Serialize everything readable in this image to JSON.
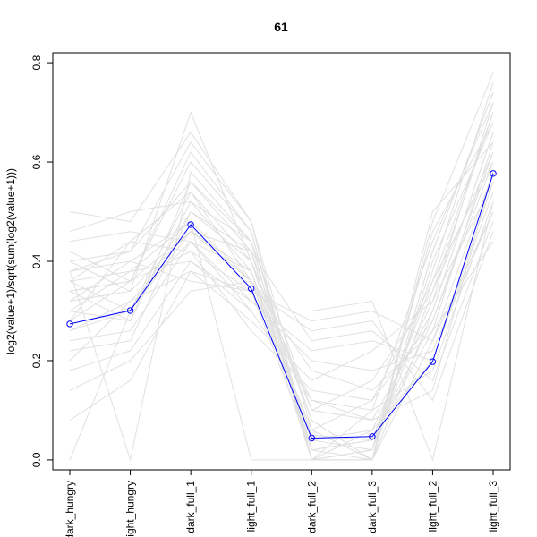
{
  "chart_data": {
    "type": "line",
    "title": "61",
    "xlabel": "",
    "ylabel": "log2(value+1)/sqrt(sum(log2(value+1)))",
    "categories": [
      "dark_hungry",
      "light_hungry",
      "dark_full_1",
      "light_full_1",
      "dark_full_2",
      "dark_full_3",
      "light_full_2",
      "light_full_3"
    ],
    "ylim": [
      -0.02,
      0.82
    ],
    "yticks": [
      0.0,
      0.2,
      0.4,
      0.6,
      0.8
    ],
    "ytick_labels": [
      "0.0",
      "0.2",
      "0.4",
      "0.6",
      "0.8"
    ],
    "grid": false,
    "series": [
      {
        "values": [
          0.274,
          0.301,
          0.474,
          0.345,
          0.044,
          0.047,
          0.198,
          0.577
        ],
        "color": "#0000ff",
        "markers": "open-circle"
      }
    ],
    "background_lines": {
      "color": "#e0e0e0",
      "lines": [
        [
          0.32,
          0.34,
          0.46,
          0.38,
          0.05,
          0.04,
          0.28,
          0.62
        ],
        [
          0.36,
          0.3,
          0.5,
          0.4,
          0.1,
          0.08,
          0.3,
          0.66
        ],
        [
          0.28,
          0.36,
          0.42,
          0.34,
          0.02,
          0.0,
          0.24,
          0.58
        ],
        [
          0.4,
          0.42,
          0.56,
          0.42,
          0.0,
          0.02,
          0.34,
          0.7
        ],
        [
          0.24,
          0.26,
          0.44,
          0.3,
          0.12,
          0.1,
          0.18,
          0.52
        ],
        [
          0.38,
          0.4,
          0.48,
          0.36,
          0.06,
          0.12,
          0.36,
          0.6
        ],
        [
          0.34,
          0.28,
          0.52,
          0.44,
          0.0,
          0.0,
          0.42,
          0.74
        ],
        [
          0.3,
          0.38,
          0.4,
          0.32,
          0.2,
          0.18,
          0.22,
          0.5
        ],
        [
          0.42,
          0.36,
          0.62,
          0.46,
          0.02,
          0.04,
          0.26,
          0.64
        ],
        [
          0.26,
          0.32,
          0.38,
          0.28,
          0.16,
          0.22,
          0.32,
          0.56
        ],
        [
          0.36,
          0.44,
          0.54,
          0.4,
          0.08,
          0.0,
          0.4,
          0.68
        ],
        [
          0.0,
          0.3,
          0.46,
          0.36,
          0.04,
          0.06,
          0.2,
          0.54
        ],
        [
          0.44,
          0.46,
          0.44,
          0.38,
          0.0,
          0.1,
          0.44,
          0.72
        ],
        [
          0.22,
          0.24,
          0.5,
          0.42,
          0.24,
          0.26,
          0.16,
          0.48
        ],
        [
          0.38,
          0.0,
          0.58,
          0.44,
          0.0,
          0.02,
          0.38,
          0.76
        ],
        [
          0.32,
          0.4,
          0.36,
          0.34,
          0.26,
          0.28,
          0.12,
          0.46
        ],
        [
          0.5,
          0.48,
          0.66,
          0.48,
          0.06,
          0.0,
          0.3,
          0.66
        ],
        [
          0.18,
          0.22,
          0.4,
          0.3,
          0.3,
          0.32,
          0.0,
          0.52
        ],
        [
          0.34,
          0.36,
          0.6,
          0.46,
          0.0,
          0.0,
          0.48,
          0.78
        ],
        [
          0.28,
          0.44,
          0.42,
          0.26,
          0.14,
          0.12,
          0.28,
          0.6
        ],
        [
          0.4,
          0.34,
          0.7,
          0.4,
          0.02,
          0.04,
          0.36,
          0.7
        ],
        [
          0.14,
          0.2,
          0.34,
          0.36,
          0.18,
          0.14,
          0.26,
          0.44
        ],
        [
          0.36,
          0.38,
          0.48,
          0.0,
          0.0,
          0.0,
          0.42,
          0.74
        ],
        [
          0.3,
          0.28,
          0.56,
          0.44,
          0.1,
          0.16,
          0.34,
          0.62
        ],
        [
          0.46,
          0.5,
          0.52,
          0.38,
          0.04,
          0.02,
          0.46,
          0.68
        ],
        [
          0.2,
          0.32,
          0.44,
          0.32,
          0.22,
          0.24,
          0.2,
          0.56
        ],
        [
          0.38,
          0.42,
          0.64,
          0.48,
          0.0,
          0.06,
          0.32,
          0.72
        ],
        [
          0.08,
          0.16,
          0.38,
          0.34,
          0.28,
          0.3,
          0.24,
          0.5
        ],
        [
          0.34,
          0.36,
          0.46,
          0.42,
          0.08,
          0.0,
          0.5,
          0.64
        ],
        [
          0.26,
          0.3,
          0.54,
          0.36,
          0.12,
          0.08,
          0.14,
          0.58
        ]
      ]
    }
  }
}
